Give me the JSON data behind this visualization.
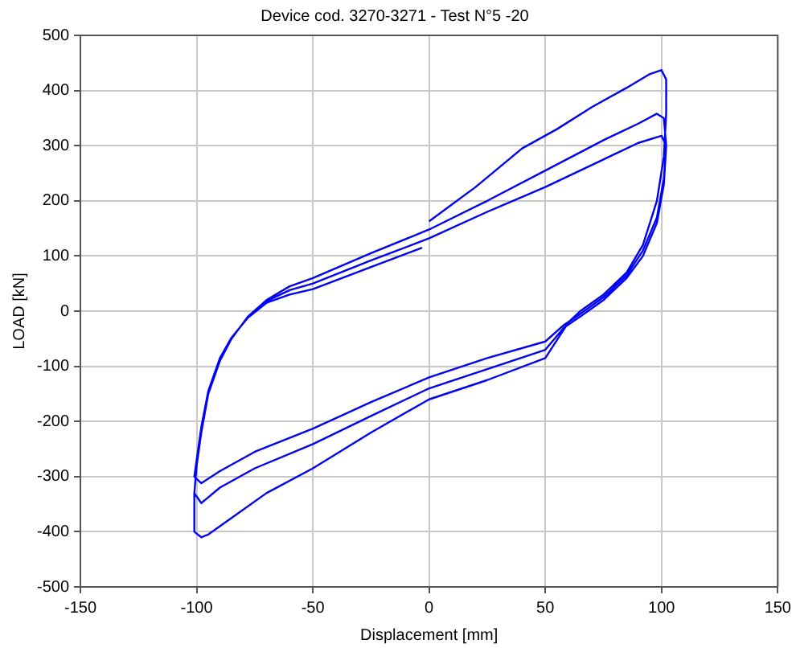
{
  "chart_data": {
    "type": "line",
    "title": "Device cod. 3270-3271 - Test N°5 -20",
    "xlabel": "Displacement [mm]",
    "ylabel": "LOAD [kN]",
    "xlim": [
      -150,
      150
    ],
    "xticks": [
      -150,
      -100,
      -50,
      0,
      50,
      100,
      150
    ],
    "ylim": [
      -500,
      500
    ],
    "yticks": [
      -500,
      -400,
      -300,
      -200,
      -100,
      0,
      100,
      200,
      300,
      400,
      500
    ],
    "grid": true,
    "legend": false,
    "marker": "none",
    "line_style": "solid",
    "series": [
      {
        "color": "#0000ff",
        "x": [
          0,
          20,
          40,
          55,
          70,
          85,
          95,
          100,
          102,
          102,
          101,
          98,
          92,
          85,
          75,
          65,
          60,
          50,
          25,
          0,
          -25,
          -50,
          -70,
          -85,
          -95,
          -98,
          -101,
          -101,
          -100,
          -98,
          -95,
          -90,
          -85,
          -78,
          -70,
          -60,
          -50,
          -25,
          0,
          25,
          50,
          75,
          90,
          98,
          101,
          102,
          101,
          98,
          92,
          85,
          75,
          65,
          58,
          50,
          25,
          0,
          -25,
          -50,
          -75,
          -90,
          -98,
          -101,
          -100,
          -98,
          -95,
          -90,
          -85,
          -78,
          -70,
          -60,
          -50,
          -25,
          0,
          25,
          50,
          75,
          90,
          100,
          102,
          101,
          98,
          92,
          85,
          75,
          65,
          58,
          50,
          25,
          0,
          -25,
          -50,
          -75,
          -90,
          -98,
          -101,
          -100,
          -98,
          -95,
          -90,
          -85,
          -78,
          -70,
          -60,
          -50,
          -25,
          -3
        ],
        "values": [
          163,
          225,
          295,
          330,
          370,
          405,
          430,
          437,
          420,
          360,
          280,
          200,
          120,
          70,
          30,
          0,
          -20,
          -85,
          -125,
          -160,
          -220,
          -285,
          -330,
          -375,
          -405,
          -410,
          -400,
          -330,
          -280,
          -220,
          -150,
          -90,
          -50,
          -10,
          20,
          45,
          60,
          105,
          148,
          200,
          255,
          310,
          340,
          358,
          350,
          300,
          230,
          160,
          100,
          60,
          20,
          -10,
          -30,
          -70,
          -105,
          -140,
          -190,
          -241,
          -285,
          -320,
          -348,
          -330,
          -280,
          -220,
          -150,
          -90,
          -50,
          -10,
          18,
          38,
          50,
          92,
          132,
          180,
          225,
          275,
          305,
          318,
          300,
          240,
          170,
          110,
          65,
          25,
          -5,
          -25,
          -55,
          -85,
          -120,
          -165,
          -213,
          -255,
          -290,
          -312,
          -300,
          -270,
          -210,
          -145,
          -85,
          -48,
          -12,
          15,
          30,
          40,
          80,
          115
        ]
      }
    ]
  }
}
